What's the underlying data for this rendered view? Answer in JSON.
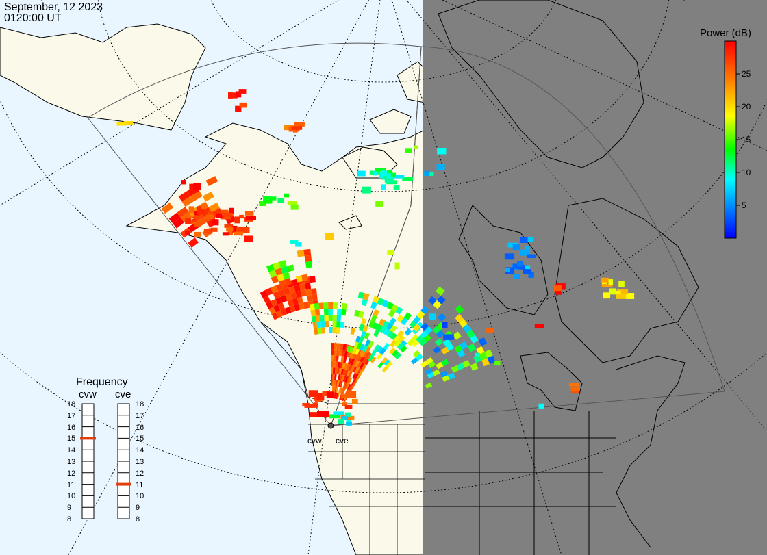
{
  "header": {
    "date": "September, 12 2023",
    "time": "0120:00 UT"
  },
  "colors": {
    "ocean": "#eaf6ff",
    "land": "#faf9ea",
    "night": "#808080",
    "coast": "#000000",
    "fov": "#444444"
  },
  "colorbar": {
    "title": "Power (dB)",
    "ticks": [
      "25",
      "20",
      "15",
      "10",
      "5"
    ],
    "tick_values": [
      25,
      20,
      15,
      10,
      5
    ],
    "range": [
      0,
      30
    ]
  },
  "frequency": {
    "title": "Frequency",
    "channels": [
      {
        "name": "cvw",
        "labels": [
          "18",
          "17",
          "16",
          "15",
          "14",
          "13",
          "12",
          "11",
          "10",
          "9",
          "8"
        ],
        "value_mhz": 15
      },
      {
        "name": "cve",
        "labels": [
          "18",
          "17",
          "16",
          "15",
          "14",
          "13",
          "12",
          "11",
          "10",
          "9",
          "8"
        ],
        "value_mhz": 11
      }
    ]
  },
  "radars": [
    {
      "name": "cvw",
      "label": "cvw"
    },
    {
      "name": "cve",
      "label": "cve"
    }
  ],
  "map_features": {
    "terminator": "night side shaded to the east",
    "regions": [
      "Alaska",
      "Canada",
      "Greenland",
      "Hudson Bay",
      "Contiguous United States"
    ]
  },
  "scatter_power_db": {
    "description": "SuperDARN backscatter power cells",
    "bands": [
      {
        "id": "cvw-far-red",
        "power_db": 28
      },
      {
        "id": "cvw-mid-mixed",
        "power_db": 18
      },
      {
        "id": "cve-near-red",
        "power_db": 28
      },
      {
        "id": "cve-mid-mixed",
        "power_db": 14
      },
      {
        "id": "arctic-low",
        "power_db": 9
      },
      {
        "id": "hudson-low",
        "power_db": 6
      },
      {
        "id": "quebec-mixed",
        "power_db": 20
      },
      {
        "id": "great-lakes",
        "power_db": 24
      }
    ]
  }
}
